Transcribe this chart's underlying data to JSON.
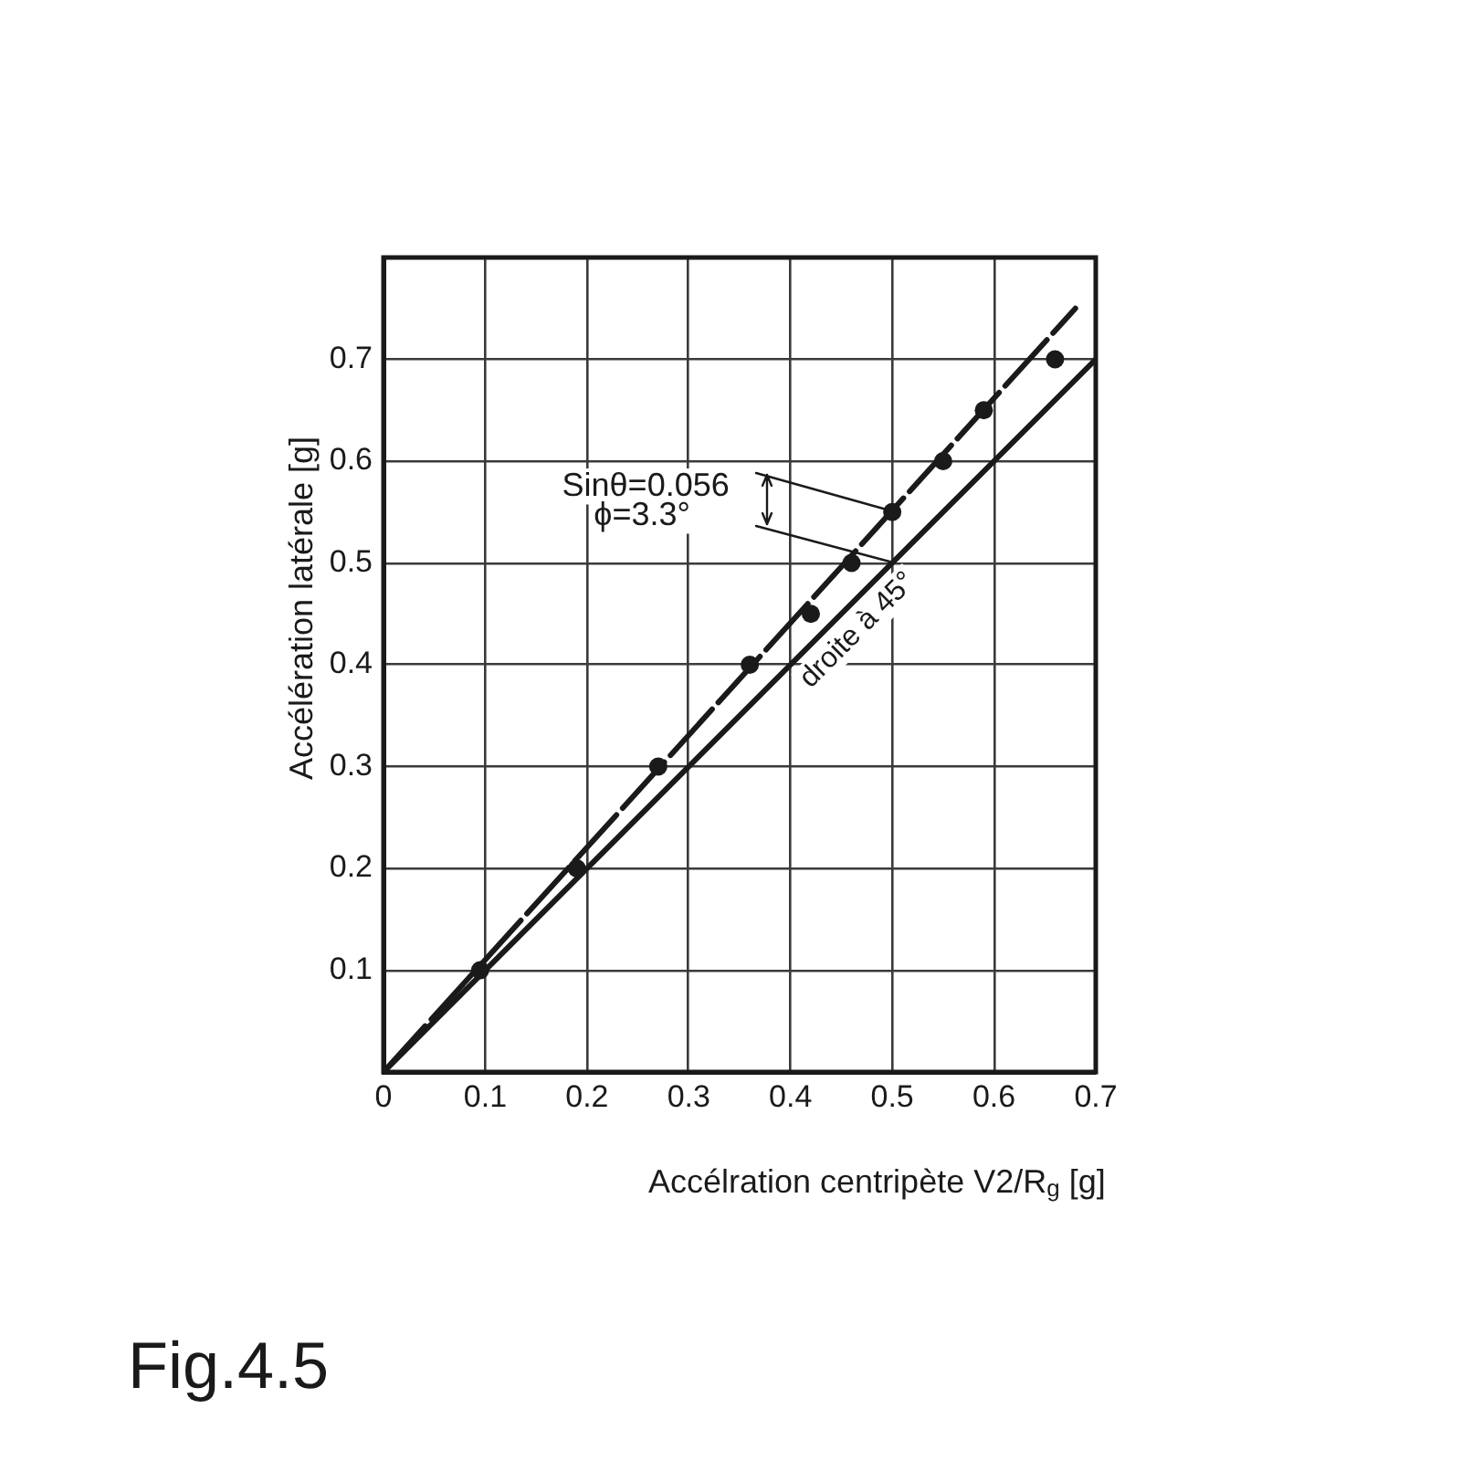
{
  "chart_data": {
    "type": "scatter",
    "xlabel": "Accélration centripète V2/R$_{g}$ [g]",
    "ylabel": "Accélération latérale [g]",
    "xlim": [
      0,
      0.7
    ],
    "ylim": [
      0,
      0.8
    ],
    "xticks": [
      0,
      0.1,
      0.2,
      0.3,
      0.4,
      0.5,
      0.6,
      0.7
    ],
    "yticks": [
      {
        "value": 0,
        "label": null
      },
      0.1,
      0.2,
      0.3,
      0.4,
      0.5,
      0.6,
      0.7
    ],
    "grid": true,
    "series": [
      {
        "type": "line",
        "x": [
          0,
          0.68
        ],
        "values": [
          0,
          0.75
        ],
        "color": "#1a1a1a",
        "line_style": "dashed",
        "marker": "none"
      },
      {
        "type": "line",
        "x": [
          0,
          0.7
        ],
        "values": [
          0,
          0.7
        ],
        "color": "#1a1a1a",
        "line_style": "solid",
        "marker": "none"
      },
      {
        "type": "scatter",
        "x": [
          0.095,
          0.19,
          0.27,
          0.36,
          0.42,
          0.46,
          0.5,
          0.55,
          0.59,
          0.66
        ],
        "values": [
          0.1,
          0.2,
          0.3,
          0.4,
          0.45,
          0.5,
          0.55,
          0.6,
          0.65,
          0.7
        ],
        "color": "#1a1a1a",
        "marker": "circle"
      }
    ],
    "annotations": [
      {
        "text": "Sinθ=0.056",
        "x": 0.5,
        "y": 0.55
      },
      "ϕ=3.3°",
      {
        "text": "droite à 45°",
        "x": 0.45,
        "y": 0.45
      },
      "Fig.4.5"
    ]
  }
}
